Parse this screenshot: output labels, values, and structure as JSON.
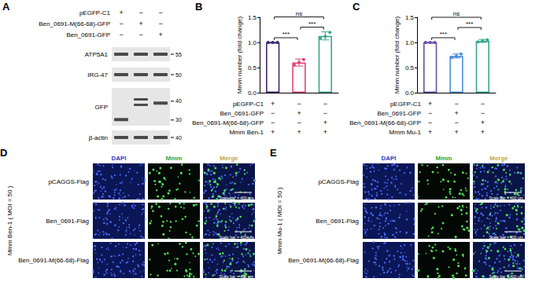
{
  "chart_data": [
    {
      "type": "bar",
      "panel": "B",
      "ylabel": "Mmm number (fold change)",
      "categories": [
        null,
        null,
        null
      ],
      "values": [
        1.0,
        0.6,
        1.13
      ],
      "errors": [
        0.0,
        0.07,
        0.08
      ],
      "points": [
        [
          1.0,
          1.0,
          1.0
        ],
        [
          0.55,
          0.6,
          0.66
        ],
        [
          1.08,
          1.12,
          1.2
        ]
      ],
      "colors": [
        "#3d2b6e",
        "#e0457b",
        "#3aa58e"
      ],
      "ylim": [
        0,
        1.5
      ],
      "yticks": [
        {
          "value": 0,
          "label": "0.0"
        },
        {
          "value": 0.5,
          "label": "0.5"
        },
        {
          "value": 1,
          "label": "1.0"
        },
        {
          "value": 1.5,
          "label": "1.5"
        }
      ],
      "grid": false,
      "tick_labels": "y",
      "significance": [
        {
          "pair": [
            0,
            1
          ],
          "label": "***"
        },
        {
          "pair": [
            1,
            2
          ],
          "label": "***"
        },
        {
          "pair": [
            0,
            2
          ],
          "label": "ns"
        }
      ],
      "conditions": [
        {
          "label": "pEGFP-C1",
          "signs": [
            "+",
            "−",
            "−"
          ]
        },
        {
          "label": "Ben_0691-GFP",
          "signs": [
            "−",
            "+",
            "−"
          ]
        },
        {
          "label": "Ben_0691-M(66-68)-GFP",
          "signs": [
            "−",
            "−",
            "+"
          ]
        },
        {
          "label": "Mmm Ben-1",
          "signs": [
            "+",
            "+",
            "+"
          ]
        }
      ]
    },
    {
      "type": "bar",
      "panel": "C",
      "ylabel": "Mmm number (fold change)",
      "categories": [
        null,
        null,
        null
      ],
      "values": [
        1.0,
        0.73,
        1.03
      ],
      "errors": [
        0.0,
        0.04,
        0.03
      ],
      "points": [
        [
          1.0,
          1.0,
          1.0
        ],
        [
          0.7,
          0.73,
          0.77
        ],
        [
          1.01,
          1.03,
          1.05
        ]
      ],
      "colors": [
        "#6a4fa3",
        "#4a8fd8",
        "#36a88e"
      ],
      "ylim": [
        0,
        1.5
      ],
      "yticks": [
        {
          "value": 0,
          "label": "0.0"
        },
        {
          "value": 0.5,
          "label": "0.5"
        },
        {
          "value": 1,
          "label": "1.0"
        },
        {
          "value": 1.5,
          "label": "1.5"
        }
      ],
      "grid": false,
      "tick_labels": "y",
      "significance": [
        {
          "pair": [
            0,
            1
          ],
          "label": "***"
        },
        {
          "pair": [
            1,
            2
          ],
          "label": "***"
        },
        {
          "pair": [
            0,
            2
          ],
          "label": "ns"
        }
      ],
      "conditions": [
        {
          "label": "pEGFP-C1",
          "signs": [
            "+",
            "−",
            "−"
          ]
        },
        {
          "label": "Ben_0691-GFP",
          "signs": [
            "−",
            "+",
            "−"
          ]
        },
        {
          "label": "Ben_0691-M(66-68)-GFP",
          "signs": [
            "−",
            "−",
            "+"
          ]
        },
        {
          "label": "Mmm Mu-1",
          "signs": [
            "+",
            "+",
            "+"
          ]
        }
      ]
    }
  ],
  "panel_a": {
    "panel": "A",
    "conditions": [
      {
        "label": "pEGFP-C1",
        "signs": [
          "+",
          "−",
          "−"
        ]
      },
      {
        "label": "Ben_0691-M(66-68)-GFP",
        "signs": [
          "−",
          "+",
          "−"
        ]
      },
      {
        "label": "Ben_0691-GFP",
        "signs": [
          "−",
          "−",
          "+"
        ]
      }
    ],
    "blots": [
      {
        "label": "ATP5A1",
        "markers": [
          55
        ]
      },
      {
        "label": "IRG-47",
        "markers": [
          50
        ]
      },
      {
        "label": "GFP",
        "markers": [
          40,
          30
        ]
      },
      {
        "label": "β-actin",
        "markers": [
          40
        ]
      }
    ]
  },
  "panel_d": {
    "panel": "D",
    "side_label": "Mmm Ben-1 ( MOI = 50 )",
    "columns": [
      "DAPI",
      "Mmm",
      "Merge"
    ],
    "rows": [
      "pCAGGS-Flag",
      "Ben_0691-Flag",
      "Ben_0691-M(66-68)-Flag"
    ],
    "scale_bar": "Scale bar = 400 μm"
  },
  "panel_e": {
    "panel": "E",
    "side_label": "Mmm Mu-1 ( MOI = 50 )",
    "columns": [
      "DAPI",
      "Mmm",
      "Merge"
    ],
    "rows": [
      "pCAGGS-Flag",
      "Ben_0691-Flag",
      "Ben_0691-M(66-68)-Flag"
    ],
    "scale_bar": "Scale bar = 400 μm"
  }
}
